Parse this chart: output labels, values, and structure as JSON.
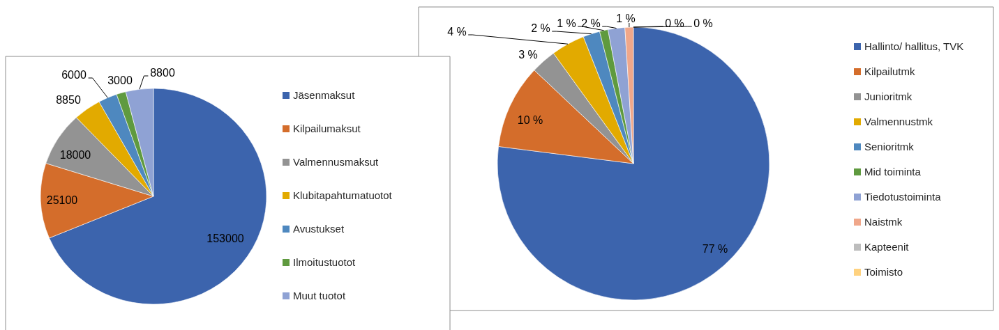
{
  "chart_data": [
    {
      "type": "pie",
      "categories": [
        "Jäsenmaksut",
        "Kilpailumaksut",
        "Valmennusmaksut",
        "Klubitapahtumatuotot",
        "Avustukset",
        "Ilmoitustuotot",
        "Muut tuotot"
      ],
      "values": [
        153000,
        25100,
        18000,
        8850,
        6000,
        3000,
        8800
      ],
      "colors": [
        "#3c64ad",
        "#d46d2b",
        "#939393",
        "#e2aa00",
        "#4e88bf",
        "#5f9a3f",
        "#8fa2d4"
      ],
      "data_labels": true,
      "legend": "right"
    },
    {
      "type": "pie",
      "categories": [
        "Hallinto/ hallitus, TVK",
        "Kilpailutmk",
        "Junioritmk",
        "Valmennustmk",
        "Senioritmk",
        "Mid toiminta",
        "Tiedotustoiminta",
        "Naistmk",
        "Kapteenit",
        "Toimisto"
      ],
      "values": [
        77,
        10,
        3,
        4,
        2,
        1,
        2,
        1,
        0,
        0
      ],
      "colors": [
        "#3c64ad",
        "#d46d2b",
        "#939393",
        "#e2aa00",
        "#4e88bf",
        "#5f9a3f",
        "#8fa2d4",
        "#f0a78a",
        "#bdbdbd",
        "#ffd27f"
      ],
      "value_labels": [
        "77 %",
        "10 %",
        "3 %",
        "4 %",
        "2 %",
        "1 %",
        "2 %",
        "1 %",
        "0 %",
        "0 %"
      ],
      "legend": "right"
    }
  ]
}
